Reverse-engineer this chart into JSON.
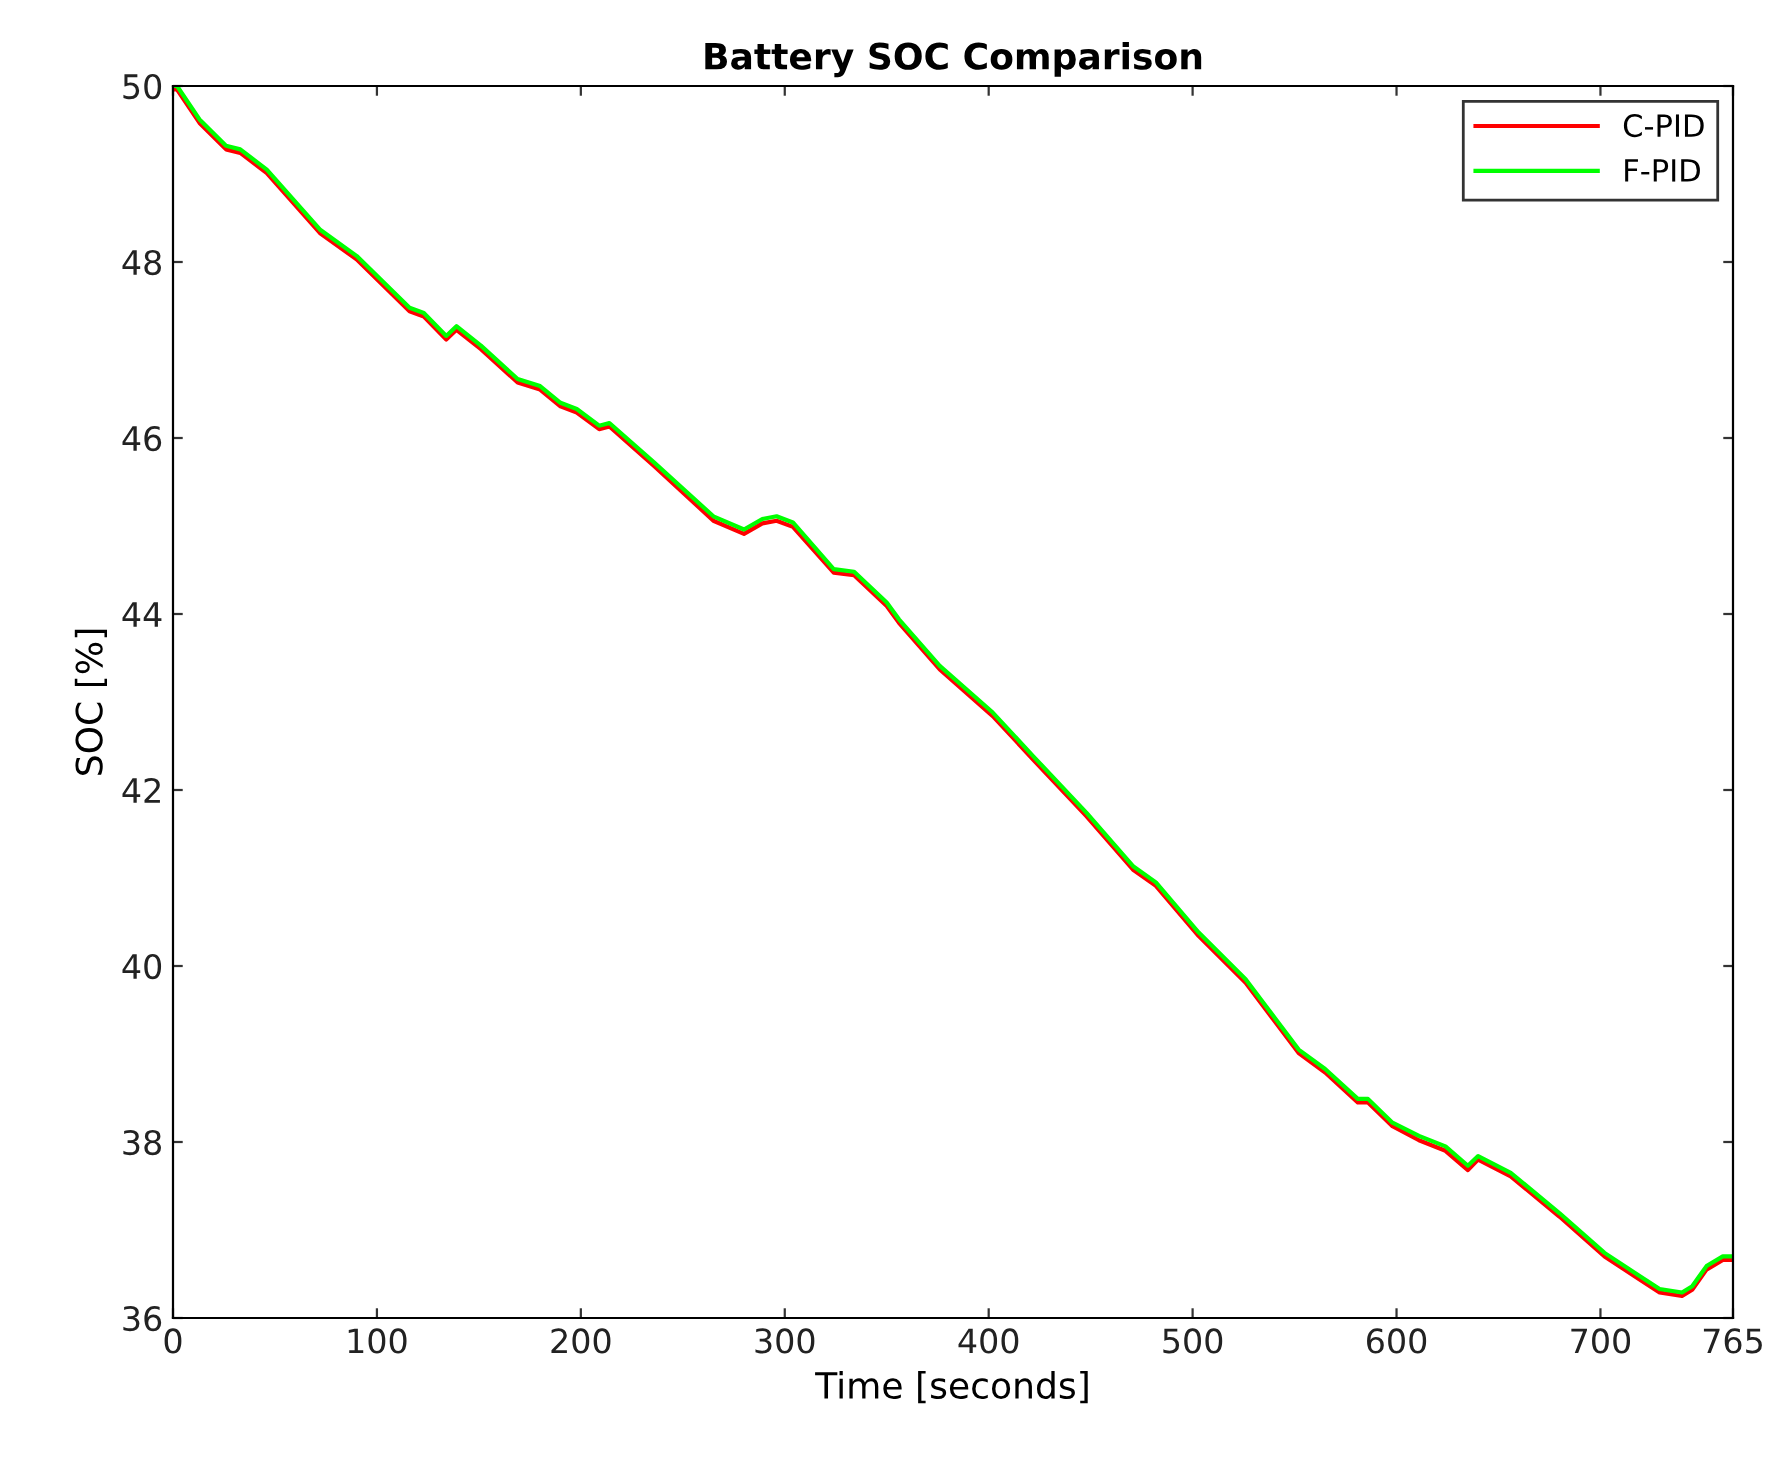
{
  "chart_data": {
    "type": "line",
    "title": "Battery SOC Comparison",
    "xlabel": "Time [seconds]",
    "ylabel": "SOC [%]",
    "x": [
      0,
      2,
      13,
      26,
      33,
      46,
      72,
      90,
      116,
      123,
      134,
      139,
      151,
      169,
      180,
      190,
      198,
      209,
      214,
      236,
      265,
      280,
      289,
      296,
      304,
      324,
      334,
      350,
      356,
      376,
      402,
      422,
      448,
      471,
      482,
      503,
      526,
      552,
      565,
      581,
      586,
      598,
      611,
      624,
      635,
      640,
      656,
      680,
      702,
      719,
      729,
      740,
      745,
      752,
      760,
      765
    ],
    "series": [
      {
        "name": "C-PID",
        "color": "#ff0000",
        "values": [
          49.96,
          49.96,
          49.58,
          49.28,
          49.24,
          49.01,
          48.33,
          48.03,
          47.44,
          47.38,
          47.12,
          47.23,
          47.01,
          46.63,
          46.55,
          46.36,
          46.29,
          46.1,
          46.13,
          45.68,
          45.06,
          44.91,
          45.03,
          45.06,
          44.99,
          44.47,
          44.44,
          44.09,
          43.9,
          43.37,
          42.84,
          42.34,
          41.7,
          41.09,
          40.91,
          40.34,
          39.81,
          39.01,
          38.79,
          38.45,
          38.45,
          38.18,
          38.02,
          37.9,
          37.68,
          37.8,
          37.61,
          37.15,
          36.7,
          36.44,
          36.29,
          36.25,
          36.32,
          36.55,
          36.66,
          36.66
        ]
      },
      {
        "name": "F-PID",
        "color": "#00ff00",
        "values": [
          50.0,
          50.0,
          49.62,
          49.32,
          49.28,
          49.05,
          48.37,
          48.07,
          47.48,
          47.42,
          47.16,
          47.27,
          47.05,
          46.67,
          46.59,
          46.4,
          46.33,
          46.14,
          46.17,
          45.72,
          45.11,
          44.96,
          45.08,
          45.11,
          45.04,
          44.51,
          44.48,
          44.13,
          43.94,
          43.41,
          42.88,
          42.38,
          41.74,
          41.13,
          40.95,
          40.38,
          39.85,
          39.05,
          38.83,
          38.49,
          38.49,
          38.22,
          38.07,
          37.95,
          37.73,
          37.84,
          37.65,
          37.19,
          36.74,
          36.48,
          36.33,
          36.29,
          36.36,
          36.59,
          36.7,
          36.7
        ]
      }
    ],
    "xlim": [
      0,
      765
    ],
    "xticks": [
      0,
      100,
      200,
      300,
      400,
      500,
      600,
      700,
      765
    ],
    "ylim": [
      36,
      50
    ],
    "yticks": [
      36,
      38,
      40,
      42,
      44,
      46,
      48,
      50
    ],
    "legend": "top right",
    "grid": false,
    "marker": "none",
    "line_style": "solid"
  }
}
